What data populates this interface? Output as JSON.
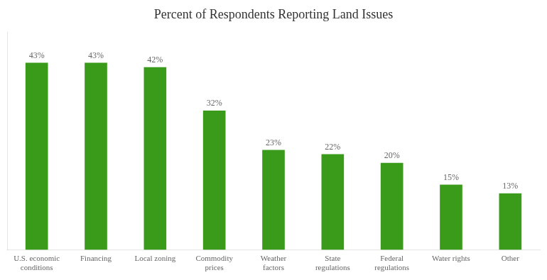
{
  "chart_data": {
    "type": "bar",
    "title": "Percent of Respondents Reporting Land Issues",
    "categories": [
      "U.S. economic\nconditions",
      "Financing",
      "Local zoning",
      "Commodity\nprices",
      "Weather\nfactors",
      "State\nregulations",
      "Federal\nregulations",
      "Water rights",
      "Other"
    ],
    "values": [
      43,
      43,
      42,
      32,
      23,
      22,
      20,
      15,
      13
    ],
    "value_labels": [
      "43%",
      "43%",
      "42%",
      "32%",
      "23%",
      "22%",
      "20%",
      "15%",
      "13%"
    ],
    "color": "#3a9a1a",
    "ylim": [
      0,
      50
    ],
    "grid": false,
    "data_labels": true,
    "tick_labels": "x"
  }
}
